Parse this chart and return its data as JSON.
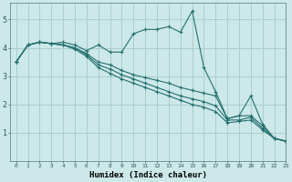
{
  "xlabel": "Humidex (Indice chaleur)",
  "bg_color": "#cce8e8",
  "grid_color": "#aacece",
  "line_color": "#267070",
  "xlim": [
    -0.5,
    23
  ],
  "ylim": [
    0,
    5.6
  ],
  "xticks": [
    0,
    1,
    2,
    3,
    4,
    5,
    6,
    7,
    8,
    9,
    10,
    11,
    12,
    13,
    14,
    15,
    16,
    17,
    18,
    19,
    20,
    21,
    22,
    23
  ],
  "yticks": [
    1,
    2,
    3,
    4,
    5
  ],
  "lines": [
    {
      "x": [
        0,
        1,
        2,
        3,
        4,
        5,
        6,
        7,
        8,
        9,
        10,
        11,
        12,
        13,
        14,
        15,
        16,
        17,
        18,
        19,
        20,
        21,
        22,
        23
      ],
      "y": [
        3.5,
        4.1,
        4.2,
        4.15,
        4.2,
        4.1,
        3.9,
        4.1,
        3.85,
        3.85,
        4.5,
        4.65,
        4.65,
        4.75,
        4.55,
        5.3,
        3.3,
        2.45,
        1.5,
        1.6,
        2.3,
        1.3,
        0.8,
        0.7
      ]
    },
    {
      "x": [
        0,
        1,
        2,
        3,
        4,
        5,
        6,
        7,
        8,
        9,
        10,
        11,
        12,
        13,
        14,
        15,
        16,
        17,
        18,
        19,
        20,
        21,
        22,
        23
      ],
      "y": [
        3.5,
        4.1,
        4.2,
        4.15,
        4.1,
        4.0,
        3.8,
        3.5,
        3.4,
        3.2,
        3.05,
        2.95,
        2.85,
        2.75,
        2.6,
        2.5,
        2.4,
        2.3,
        1.5,
        1.6,
        1.6,
        1.25,
        0.8,
        0.7
      ]
    },
    {
      "x": [
        0,
        1,
        2,
        3,
        4,
        5,
        6,
        7,
        8,
        9,
        10,
        11,
        12,
        13,
        14,
        15,
        16,
        17,
        18,
        19,
        20,
        21,
        22,
        23
      ],
      "y": [
        3.5,
        4.1,
        4.2,
        4.15,
        4.1,
        4.0,
        3.75,
        3.4,
        3.25,
        3.05,
        2.9,
        2.75,
        2.6,
        2.45,
        2.3,
        2.2,
        2.1,
        1.95,
        1.45,
        1.45,
        1.55,
        1.15,
        0.8,
        0.7
      ]
    },
    {
      "x": [
        0,
        1,
        2,
        3,
        4,
        5,
        6,
        7,
        8,
        9,
        10,
        11,
        12,
        13,
        14,
        15,
        16,
        17,
        18,
        19,
        20,
        21,
        22,
        23
      ],
      "y": [
        3.5,
        4.1,
        4.2,
        4.15,
        4.1,
        3.95,
        3.7,
        3.3,
        3.1,
        2.9,
        2.75,
        2.6,
        2.45,
        2.3,
        2.15,
        2.0,
        1.9,
        1.75,
        1.35,
        1.4,
        1.45,
        1.1,
        0.8,
        0.7
      ]
    }
  ]
}
